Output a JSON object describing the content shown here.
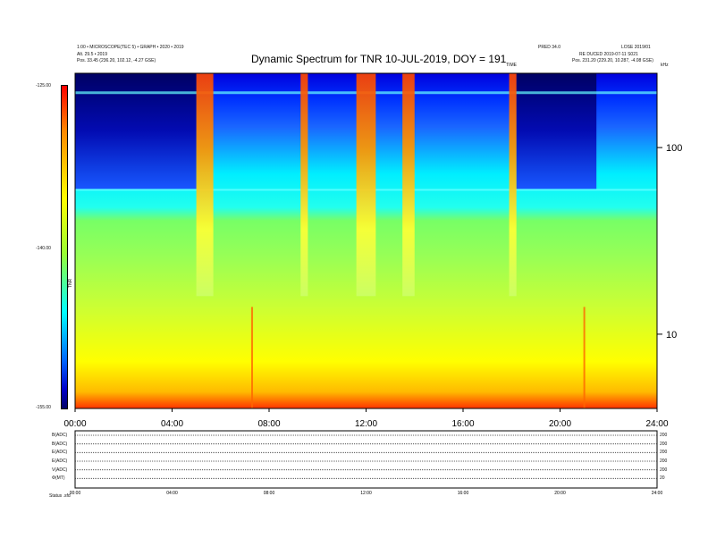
{
  "header": {
    "title": "Dynamic Spectrum for TNR 10-JUL-2019, DOY = 191",
    "left_line1": "1:00 • MICROSCOPE(TEC 5) • GRAPH • 2020 • 2019",
    "left_line2": "Alt. 29.5 • 2019",
    "left_line3": "Pos.   33.45 (236.20, 102.12, -4.27 GSE)",
    "right_line1a": "PRED 34.0",
    "right_line1b": "LOSE 2019/01",
    "right_line2": "RE DUCED 2019-07-11 S021",
    "right_line3": "Pos.   231.20 (229.20, 10.287, -4.08 GSE)",
    "marker_top": "TIME",
    "right_axis_top": "kHz"
  },
  "colorbar": {
    "label": "TNR",
    "ticks": [
      "-125.00",
      "-140.00",
      "-155.00"
    ]
  },
  "chart_data": {
    "type": "heatmap",
    "title": "Dynamic Spectrum for TNR 10-JUL-2019, DOY = 191",
    "x_ticks": [
      "00:00",
      "04:00",
      "08:00",
      "12:00",
      "16:00",
      "20:00",
      "24:00"
    ],
    "x_range_hours": [
      0,
      24
    ],
    "y_axis": "right",
    "y_scale": "log",
    "y_ticks": [
      "100",
      "10"
    ],
    "y_range_khz": [
      4,
      250
    ],
    "color_range": [
      -155,
      -125
    ],
    "colormap": [
      "#000066",
      "#0000ff",
      "#00ffff",
      "#ffff00",
      "#ff0000"
    ],
    "bursts_hours": [
      [
        5.0,
        5.7
      ],
      [
        9.3,
        9.6
      ],
      [
        11.6,
        12.4
      ],
      [
        13.5,
        14.0
      ],
      [
        17.9,
        18.2
      ]
    ],
    "quiet_intervals_hours": [
      [
        0,
        5.0
      ],
      [
        18.2,
        21.5
      ]
    ],
    "spikes_hours": [
      7.3,
      21.0
    ]
  },
  "panels": {
    "rows": [
      {
        "label": "B(ADC)",
        "right": "200"
      },
      {
        "label": "B(ADC)",
        "right": "200"
      },
      {
        "label": "E(ADC)",
        "right": "200"
      },
      {
        "label": "E(ADC)",
        "right": "200"
      },
      {
        "label": "V(ADC)",
        "right": "200"
      },
      {
        "label": "Φ(MT)",
        "right": "20"
      }
    ],
    "time_ticks": [
      "00:00",
      "04:00",
      "08:00",
      "12:00",
      "16:00",
      "20:00",
      "24:00"
    ],
    "footer": "Status  .sfd"
  }
}
